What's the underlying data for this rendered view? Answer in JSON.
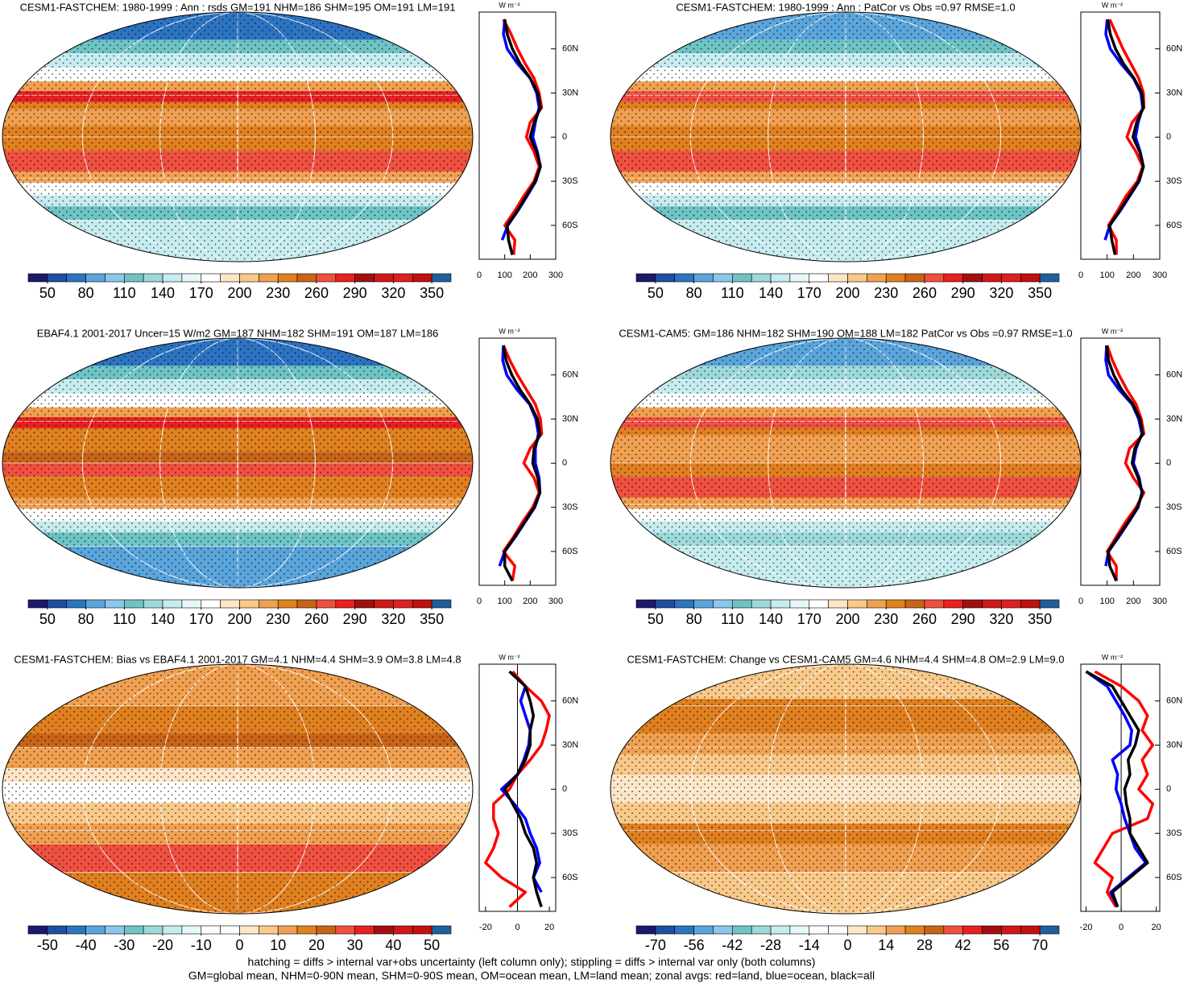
{
  "chart_data": [
    {
      "type": "map",
      "title": "CESM1-FASTCHEM: 1980-1999 : Ann : rsds GM=191 NHM=186 SHM=195 OM=191 LM=191",
      "colorbar_colors": [
        "#1a1a6e",
        "#1f4fa0",
        "#2c74c2",
        "#5aa5dc",
        "#8cc6e8",
        "#6ec4c4",
        "#9ed9d9",
        "#c6ecf0",
        "#e6f7f7",
        "#ffffff",
        "#fde6c8",
        "#f9c98a",
        "#f0a050",
        "#e08020",
        "#c86418",
        "#f05040",
        "#e82020",
        "#a01010",
        "#d01818",
        "#e02020",
        "#c01010",
        "#1f5f9f"
      ],
      "colorbar_lim": [
        35,
        365
      ],
      "colorbar_ticks": [
        50,
        80,
        110,
        140,
        170,
        200,
        230,
        260,
        290,
        320,
        350
      ]
    },
    {
      "type": "line",
      "x_label": "W m⁻²",
      "xlim": [
        0,
        300
      ],
      "xticks": [
        0,
        100,
        200,
        300
      ],
      "ylim": [
        -83,
        85
      ],
      "yticks": [
        {
          "value": 60,
          "label": "60N"
        },
        {
          "value": 30,
          "label": "30N"
        },
        0,
        {
          "value": -30,
          "label": "30S"
        },
        {
          "value": -60,
          "label": "60S"
        }
      ],
      "latitudes": [
        80,
        70,
        60,
        50,
        40,
        30,
        20,
        10,
        0,
        -10,
        -20,
        -30,
        -40,
        -50,
        -60,
        -70,
        -80
      ],
      "series": [
        {
          "color": "#ff0000",
          "values": [
            95,
            125,
            150,
            180,
            215,
            235,
            245,
            200,
            185,
            215,
            235,
            215,
            175,
            140,
            100,
            140,
            135
          ]
        },
        {
          "color": "#0000ff",
          "values": [
            100,
            95,
            110,
            150,
            200,
            225,
            235,
            220,
            210,
            228,
            240,
            222,
            188,
            152,
            112,
            90,
            null
          ]
        },
        {
          "color": "#000000",
          "values": [
            100,
            110,
            130,
            160,
            200,
            230,
            240,
            215,
            200,
            225,
            240,
            220,
            185,
            150,
            110,
            115,
            130
          ]
        }
      ]
    },
    {
      "type": "map",
      "title": "CESM1-FASTCHEM: 1980-1999 : Ann : PatCor vs Obs =0.97 RMSE=1.0",
      "colorbar_colors": [
        "#1a1a6e",
        "#1f4fa0",
        "#2c74c2",
        "#5aa5dc",
        "#8cc6e8",
        "#6ec4c4",
        "#9ed9d9",
        "#c6ecf0",
        "#e6f7f7",
        "#ffffff",
        "#fde6c8",
        "#f9c98a",
        "#f0a050",
        "#e08020",
        "#c86418",
        "#f05040",
        "#e82020",
        "#a01010",
        "#d01818",
        "#e02020",
        "#c01010",
        "#1f5f9f"
      ],
      "colorbar_lim": [
        35,
        365
      ],
      "colorbar_ticks": [
        50,
        80,
        110,
        140,
        170,
        200,
        230,
        260,
        290,
        320,
        350
      ]
    },
    {
      "type": "line",
      "x_label": "W m⁻²",
      "xlim": [
        0,
        300
      ],
      "xticks": [
        0,
        100,
        200,
        300
      ],
      "ylim": [
        -83,
        85
      ],
      "yticks": [
        {
          "value": 60,
          "label": "60N"
        },
        {
          "value": 30,
          "label": "30N"
        },
        0,
        {
          "value": -30,
          "label": "30S"
        },
        {
          "value": -60,
          "label": "60S"
        }
      ],
      "latitudes": [
        80,
        70,
        60,
        50,
        40,
        30,
        20,
        10,
        0,
        -10,
        -20,
        -30,
        -40,
        -50,
        -60,
        -70,
        -80
      ],
      "series": [
        {
          "color": "#ff0000",
          "values": [
            110,
            135,
            160,
            190,
            220,
            238,
            240,
            195,
            175,
            210,
            235,
            215,
            172,
            140,
            105,
            135,
            135
          ]
        },
        {
          "color": "#0000ff",
          "values": [
            100,
            95,
            112,
            152,
            200,
            228,
            235,
            218,
            208,
            226,
            238,
            222,
            186,
            150,
            110,
            92,
            null
          ]
        },
        {
          "color": "#000000",
          "values": [
            102,
            112,
            132,
            162,
            202,
            232,
            238,
            212,
            198,
            224,
            238,
            220,
            184,
            148,
            110,
            118,
            130
          ]
        }
      ]
    },
    {
      "type": "map",
      "title": "EBAF4.1 2001-2017 Uncer=15 W/m2 GM=187 NHM=182 SHM=191 OM=187 LM=186",
      "colorbar_colors": [
        "#1a1a6e",
        "#1f4fa0",
        "#2c74c2",
        "#5aa5dc",
        "#8cc6e8",
        "#6ec4c4",
        "#9ed9d9",
        "#c6ecf0",
        "#e6f7f7",
        "#ffffff",
        "#fde6c8",
        "#f9c98a",
        "#f0a050",
        "#e08020",
        "#c86418",
        "#f05040",
        "#e82020",
        "#a01010",
        "#d01818",
        "#e02020",
        "#c01010",
        "#1f5f9f"
      ],
      "colorbar_lim": [
        35,
        365
      ],
      "colorbar_ticks": [
        50,
        80,
        110,
        140,
        170,
        200,
        230,
        260,
        290,
        320,
        350
      ]
    },
    {
      "type": "line",
      "x_label": "W m⁻²",
      "xlim": [
        0,
        300
      ],
      "xticks": [
        0,
        100,
        200,
        300
      ],
      "ylim": [
        -83,
        85
      ],
      "yticks": [
        {
          "value": 60,
          "label": "60N"
        },
        {
          "value": 30,
          "label": "30N"
        },
        0,
        {
          "value": -30,
          "label": "30S"
        },
        {
          "value": -60,
          "label": "60S"
        }
      ],
      "latitudes": [
        80,
        70,
        60,
        50,
        40,
        30,
        20,
        10,
        0,
        -10,
        -20,
        -30,
        -40,
        -50,
        -60,
        -70,
        -80
      ],
      "series": [
        {
          "color": "#ff0000",
          "values": [
            95,
            120,
            150,
            185,
            220,
            240,
            245,
            200,
            175,
            215,
            235,
            210,
            170,
            135,
            95,
            140,
            130
          ]
        },
        {
          "color": "#0000ff",
          "values": [
            95,
            92,
            108,
            148,
            198,
            222,
            232,
            220,
            220,
            235,
            238,
            218,
            180,
            142,
            100,
            80,
            null
          ]
        },
        {
          "color": "#000000",
          "values": [
            95,
            105,
            128,
            160,
            200,
            228,
            238,
            215,
            210,
            230,
            238,
            216,
            178,
            140,
            100,
            100,
            130
          ]
        }
      ]
    },
    {
      "type": "map",
      "title": "CESM1-CAM5: GM=186 NHM=182 SHM=190 OM=188 LM=182 PatCor vs Obs =0.97 RMSE=1.0",
      "colorbar_colors": [
        "#1a1a6e",
        "#1f4fa0",
        "#2c74c2",
        "#5aa5dc",
        "#8cc6e8",
        "#6ec4c4",
        "#9ed9d9",
        "#c6ecf0",
        "#e6f7f7",
        "#ffffff",
        "#fde6c8",
        "#f9c98a",
        "#f0a050",
        "#e08020",
        "#c86418",
        "#f05040",
        "#e82020",
        "#a01010",
        "#d01818",
        "#e02020",
        "#c01010",
        "#1f5f9f"
      ],
      "colorbar_lim": [
        35,
        365
      ],
      "colorbar_ticks": [
        50,
        80,
        110,
        140,
        170,
        200,
        230,
        260,
        290,
        320,
        350
      ]
    },
    {
      "type": "line",
      "x_label": "W m⁻²",
      "xlim": [
        0,
        300
      ],
      "xticks": [
        0,
        100,
        200,
        300
      ],
      "ylim": [
        -83,
        85
      ],
      "yticks": [
        {
          "value": 60,
          "label": "60N"
        },
        {
          "value": 30,
          "label": "30N"
        },
        0,
        {
          "value": -30,
          "label": "30S"
        },
        {
          "value": -60,
          "label": "60S"
        }
      ],
      "latitudes": [
        80,
        70,
        60,
        50,
        40,
        30,
        20,
        10,
        0,
        -10,
        -20,
        -30,
        -40,
        -50,
        -60,
        -70,
        -80
      ],
      "series": [
        {
          "color": "#ff0000",
          "values": [
            100,
            120,
            145,
            175,
            210,
            230,
            240,
            185,
            170,
            200,
            240,
            210,
            170,
            135,
            100,
            135,
            135
          ]
        },
        {
          "color": "#0000ff",
          "values": [
            98,
            95,
            105,
            145,
            195,
            220,
            232,
            210,
            200,
            222,
            232,
            218,
            182,
            145,
            105,
            95,
            null
          ]
        },
        {
          "color": "#000000",
          "values": [
            98,
            105,
            125,
            155,
            198,
            225,
            235,
            205,
            195,
            218,
            234,
            216,
            180,
            142,
            105,
            110,
            135
          ]
        }
      ]
    },
    {
      "type": "map",
      "title": "CESM1-FASTCHEM: Bias vs EBAF4.1 2001-2017 GM=4.1 NHM=4.4 SHM=3.9 OM=3.8 LM=4.8",
      "colorbar_colors": [
        "#1a1a6e",
        "#1f4fa0",
        "#2c74c2",
        "#5aa5dc",
        "#8cc6e8",
        "#6ec4c4",
        "#9ed9d9",
        "#c6ecf0",
        "#e6f7f7",
        "#ffffff",
        "#ffffff",
        "#fde6c8",
        "#f9c98a",
        "#f0a050",
        "#e08020",
        "#c86418",
        "#f05040",
        "#e82020",
        "#a01010",
        "#d01818",
        "#c01010",
        "#1f5f9f"
      ],
      "colorbar_lim": [
        -55,
        55
      ],
      "colorbar_ticks": [
        -50,
        -40,
        -30,
        -20,
        -10,
        0,
        10,
        20,
        30,
        40,
        50
      ]
    },
    {
      "type": "line",
      "x_label": "W m⁻²",
      "xlim": [
        -24,
        24
      ],
      "xticks": [
        -20,
        0,
        20
      ],
      "reference_x": 0,
      "ylim": [
        -83,
        85
      ],
      "yticks": [
        {
          "value": 60,
          "label": "60N"
        },
        {
          "value": 30,
          "label": "30N"
        },
        0,
        {
          "value": -30,
          "label": "30S"
        },
        {
          "value": -60,
          "label": "60S"
        }
      ],
      "latitudes": [
        80,
        70,
        60,
        50,
        40,
        30,
        20,
        10,
        0,
        -10,
        -20,
        -30,
        -40,
        -50,
        -60,
        -70,
        -80
      ],
      "series": [
        {
          "color": "#ff0000",
          "values": [
            -3,
            5,
            15,
            20,
            18,
            15,
            8,
            0,
            -5,
            -15,
            -15,
            -12,
            -15,
            -20,
            -10,
            5,
            -5
          ]
        },
        {
          "color": "#0000ff",
          "values": [
            -5,
            5,
            2,
            5,
            8,
            7,
            4,
            0,
            -10,
            -2,
            5,
            8,
            12,
            14,
            10,
            15,
            null
          ]
        },
        {
          "color": "#000000",
          "values": [
            -5,
            5,
            8,
            10,
            8,
            8,
            5,
            0,
            -8,
            -3,
            2,
            5,
            10,
            12,
            10,
            12,
            15
          ]
        }
      ]
    },
    {
      "type": "map",
      "title": "CESM1-FASTCHEM: Change vs CESM1-CAM5 GM=4.6 NHM=4.4 SHM=4.8 OM=2.9 LM=9.0",
      "colorbar_colors": [
        "#1a1a6e",
        "#1f4fa0",
        "#2c74c2",
        "#5aa5dc",
        "#8cc6e8",
        "#6ec4c4",
        "#9ed9d9",
        "#c6ecf0",
        "#e6f7f7",
        "#ffffff",
        "#ffffff",
        "#fde6c8",
        "#f9c98a",
        "#f0a050",
        "#e08020",
        "#c86418",
        "#f05040",
        "#e82020",
        "#a01010",
        "#d01818",
        "#c01010",
        "#1f5f9f"
      ],
      "colorbar_lim": [
        -77,
        77
      ],
      "colorbar_ticks": [
        -70,
        -56,
        -42,
        -28,
        -14,
        0,
        14,
        28,
        42,
        56,
        70
      ]
    },
    {
      "type": "line",
      "x_label": "W m⁻²",
      "xlim": [
        -23,
        22
      ],
      "xticks": [
        -20,
        0,
        20
      ],
      "reference_x": 0,
      "ylim": [
        -83,
        85
      ],
      "yticks": [
        {
          "value": 60,
          "label": "60N"
        },
        {
          "value": 30,
          "label": "30N"
        },
        0,
        {
          "value": -30,
          "label": "30S"
        },
        {
          "value": -60,
          "label": "60S"
        }
      ],
      "latitudes": [
        80,
        70,
        60,
        50,
        40,
        30,
        20,
        10,
        0,
        -10,
        -20,
        -30,
        -40,
        -50,
        -60,
        -70,
        -80
      ],
      "series": [
        {
          "color": "#ff0000",
          "values": [
            -15,
            0,
            10,
            15,
            12,
            18,
            12,
            15,
            10,
            18,
            15,
            -5,
            -10,
            -15,
            -5,
            -8,
            -3
          ]
        },
        {
          "color": "#0000ff",
          "values": [
            -20,
            -8,
            -3,
            2,
            6,
            5,
            -5,
            -2,
            -3,
            0,
            2,
            5,
            8,
            14,
            4,
            -6,
            -2
          ]
        },
        {
          "color": "#000000",
          "values": [
            -20,
            -5,
            0,
            5,
            10,
            8,
            4,
            5,
            2,
            3,
            5,
            5,
            10,
            15,
            5,
            -5,
            -2
          ]
        }
      ]
    }
  ],
  "notes": [
    "hatching = diffs > internal var+obs uncertainty (left column only); stippling = diffs > internal var only (both columns)",
    "GM=global mean, NHM=0-90N mean, SHM=0-90S mean, OM=ocean mean, LM=land mean; zonal avgs: red=land, blue=ocean, black=all"
  ]
}
